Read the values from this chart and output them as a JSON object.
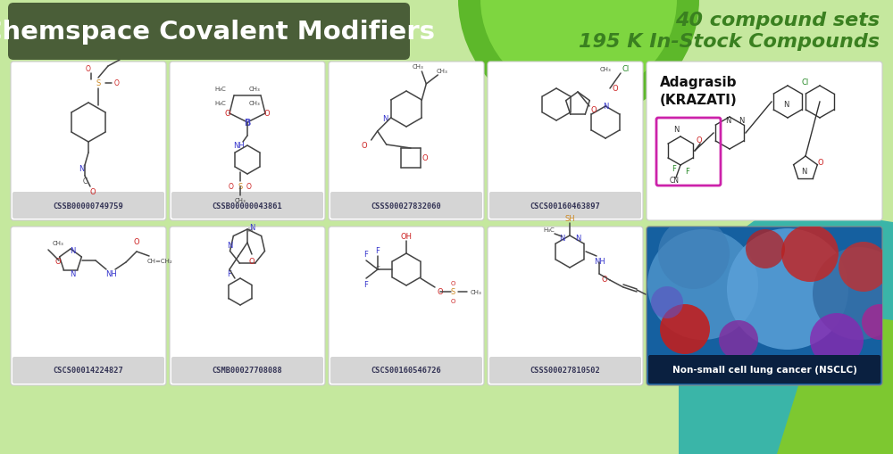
{
  "bg_color": "#c5e89e",
  "title_box_color": "#4a5e38",
  "title_text": "Chemspace Covalent Modifiers",
  "title_text_color": "#ffffff",
  "subtitle_line1": "40 compound sets",
  "subtitle_line2": "195 K In-Stock Compounds",
  "subtitle_color": "#3a8020",
  "card_bg": "#ffffff",
  "card_label_bg": "#d8d8d8",
  "card_text_color": "#333355",
  "row1_ids": [
    "CSSB00000749759",
    "CSSB00000043861",
    "CSSS00027832060",
    "CSCS00160463897"
  ],
  "row2_ids": [
    "CSCS00014224827",
    "CSMB00027708088",
    "CSCS00160546726",
    "CSSS00027810502"
  ],
  "adagrasib_label": "Adagrasib\n(KRAZATI)",
  "nsclc_label": "Non-small cell lung cancer (NSCLC)",
  "circle_color": "#6dc82e",
  "teal_color": "#3ab5a8",
  "green_shape_color": "#7dc830"
}
